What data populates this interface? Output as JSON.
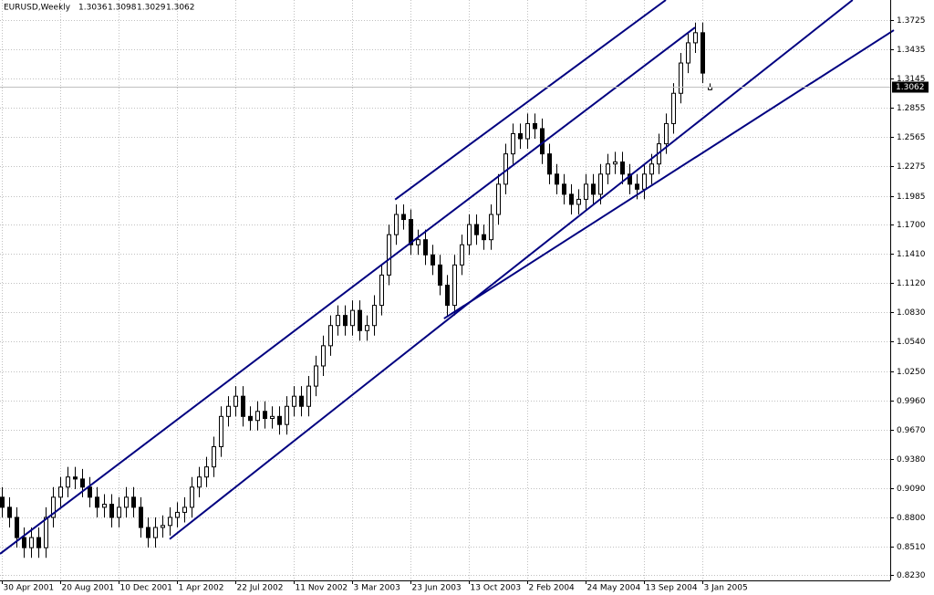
{
  "chart_data": {
    "type": "candlestick",
    "title": "EURUSD,Weekly",
    "categories": [
      "30 Apr 2001",
      null,
      null,
      null,
      null,
      null,
      null,
      null,
      "20 Aug 2001",
      null,
      null,
      null,
      null,
      null,
      null,
      null,
      "10 Dec 2001",
      null,
      null,
      null,
      null,
      null,
      null,
      null,
      "1 Apr 2002",
      null,
      null,
      null,
      null,
      null,
      null,
      null,
      "22 Jul 2002",
      null,
      null,
      null,
      null,
      null,
      null,
      null,
      "11 Nov 2002",
      null,
      null,
      null,
      null,
      null,
      null,
      null,
      "3 Mar 2003",
      null,
      null,
      null,
      null,
      null,
      null,
      null,
      "23 Jun 2003",
      null,
      null,
      null,
      null,
      null,
      null,
      null,
      "13 Oct 2003",
      null,
      null,
      null,
      null,
      null,
      null,
      null,
      "2 Feb 2004",
      null,
      null,
      null,
      null,
      null,
      null,
      null,
      "24 May 2004",
      null,
      null,
      null,
      null,
      null,
      null,
      null,
      "13 Sep 2004",
      null,
      null,
      null,
      null,
      null,
      null,
      null,
      "3 Jan 2005",
      null
    ],
    "open": [
      0.9,
      0.89,
      0.88,
      0.86,
      0.85,
      0.86,
      0.85,
      0.88,
      0.9,
      0.91,
      0.92,
      0.918,
      0.91,
      0.9,
      0.89,
      0.893,
      0.88,
      0.89,
      0.9,
      0.89,
      0.87,
      0.86,
      0.87,
      0.872,
      0.88,
      0.885,
      0.89,
      0.91,
      0.92,
      0.93,
      0.95,
      0.98,
      0.99,
      1.0,
      0.98,
      0.976,
      0.985,
      0.978,
      0.98,
      0.972,
      0.99,
      1.0,
      0.99,
      1.01,
      1.03,
      1.05,
      1.07,
      1.08,
      1.07,
      1.085,
      1.065,
      1.07,
      1.09,
      1.12,
      1.16,
      1.18,
      1.175,
      1.15,
      1.155,
      1.14,
      1.13,
      1.11,
      1.09,
      1.13,
      1.15,
      1.17,
      1.16,
      1.155,
      1.18,
      1.21,
      1.24,
      1.26,
      1.255,
      1.27,
      1.265,
      1.24,
      1.22,
      1.21,
      1.2,
      1.19,
      1.195,
      1.21,
      1.2,
      1.22,
      1.23,
      1.232,
      1.22,
      1.21,
      1.205,
      1.22,
      1.23,
      1.25,
      1.27,
      1.3,
      1.33,
      1.35,
      1.36,
      1.3036
    ],
    "high": [
      0.91,
      0.9,
      0.89,
      0.87,
      0.87,
      0.87,
      0.89,
      0.91,
      0.92,
      0.93,
      0.93,
      0.928,
      0.92,
      0.91,
      0.903,
      0.903,
      0.9,
      0.91,
      0.91,
      0.9,
      0.88,
      0.88,
      0.882,
      0.89,
      0.895,
      0.9,
      0.92,
      0.93,
      0.94,
      0.96,
      0.99,
      1.0,
      1.01,
      1.01,
      0.99,
      0.995,
      0.995,
      0.99,
      0.99,
      1.0,
      1.01,
      1.01,
      1.02,
      1.04,
      1.06,
      1.08,
      1.09,
      1.09,
      1.095,
      1.095,
      1.08,
      1.1,
      1.13,
      1.17,
      1.19,
      1.19,
      1.185,
      1.165,
      1.165,
      1.15,
      1.14,
      1.12,
      1.14,
      1.16,
      1.18,
      1.18,
      1.17,
      1.19,
      1.22,
      1.25,
      1.27,
      1.27,
      1.28,
      1.28,
      1.275,
      1.25,
      1.23,
      1.22,
      1.21,
      1.205,
      1.22,
      1.22,
      1.23,
      1.24,
      1.242,
      1.242,
      1.23,
      1.22,
      1.23,
      1.24,
      1.26,
      1.28,
      1.31,
      1.34,
      1.36,
      1.37,
      1.37,
      1.3098
    ],
    "low": [
      0.88,
      0.87,
      0.85,
      0.84,
      0.84,
      0.84,
      0.84,
      0.87,
      0.89,
      0.9,
      0.908,
      0.9,
      0.89,
      0.88,
      0.88,
      0.87,
      0.87,
      0.88,
      0.88,
      0.86,
      0.85,
      0.85,
      0.86,
      0.862,
      0.87,
      0.875,
      0.88,
      0.9,
      0.91,
      0.92,
      0.94,
      0.97,
      0.98,
      0.97,
      0.966,
      0.966,
      0.968,
      0.968,
      0.962,
      0.962,
      0.98,
      0.98,
      0.98,
      1.0,
      1.02,
      1.04,
      1.06,
      1.06,
      1.06,
      1.055,
      1.055,
      1.06,
      1.08,
      1.11,
      1.15,
      1.165,
      1.14,
      1.14,
      1.13,
      1.12,
      1.1,
      1.08,
      1.08,
      1.12,
      1.14,
      1.15,
      1.145,
      1.145,
      1.17,
      1.2,
      1.23,
      1.245,
      1.245,
      1.255,
      1.23,
      1.21,
      1.2,
      1.19,
      1.18,
      1.18,
      1.185,
      1.19,
      1.19,
      1.21,
      1.22,
      1.21,
      1.2,
      1.195,
      1.195,
      1.21,
      1.22,
      1.24,
      1.26,
      1.29,
      1.32,
      1.34,
      1.31,
      1.3029
    ],
    "close": [
      0.89,
      0.88,
      0.86,
      0.85,
      0.86,
      0.85,
      0.88,
      0.9,
      0.91,
      0.92,
      0.918,
      0.91,
      0.9,
      0.89,
      0.893,
      0.88,
      0.89,
      0.9,
      0.89,
      0.87,
      0.86,
      0.87,
      0.872,
      0.88,
      0.885,
      0.89,
      0.91,
      0.92,
      0.93,
      0.95,
      0.98,
      0.99,
      1.0,
      0.98,
      0.976,
      0.985,
      0.978,
      0.98,
      0.972,
      0.99,
      1.0,
      0.99,
      1.01,
      1.03,
      1.05,
      1.07,
      1.08,
      1.07,
      1.085,
      1.065,
      1.07,
      1.09,
      1.12,
      1.16,
      1.18,
      1.175,
      1.15,
      1.155,
      1.14,
      1.13,
      1.11,
      1.09,
      1.13,
      1.15,
      1.17,
      1.16,
      1.155,
      1.18,
      1.21,
      1.24,
      1.26,
      1.255,
      1.27,
      1.265,
      1.24,
      1.22,
      1.21,
      1.2,
      1.19,
      1.195,
      1.21,
      1.2,
      1.22,
      1.23,
      1.232,
      1.22,
      1.21,
      1.205,
      1.22,
      1.23,
      1.25,
      1.27,
      1.3,
      1.33,
      1.35,
      1.36,
      1.32,
      1.3062
    ],
    "bull_color": "#ffffff",
    "bear_color": "#000000",
    "wick_color": "#000000",
    "trendline_color": "#000080",
    "trendlines": [
      {
        "x": [
          53.9,
          91
        ],
        "y": [
          1.1948,
          1.3924
        ]
      },
      {
        "x": [
          -0.25,
          95
        ],
        "y": [
          0.8439,
          1.3652
        ]
      },
      {
        "x": [
          23,
          116.6
        ],
        "y": [
          0.8585,
          1.3924
        ]
      },
      {
        "x": [
          60.6,
          122.25
        ],
        "y": [
          1.0769,
          1.3625
        ]
      }
    ],
    "xlim": [
      -0.25,
      121.75
    ],
    "ylim": [
      0.8176,
      1.3924
    ],
    "yticks": [
      1.3725,
      1.3435,
      1.3145,
      1.2855,
      1.2565,
      1.2275,
      1.1985,
      {
        "value": 1.17,
        "label": "1.1700"
      },
      {
        "value": 1.141,
        "label": "1.1410"
      },
      {
        "value": 1.112,
        "label": "1.1120"
      },
      {
        "value": 1.083,
        "label": "1.0830"
      },
      {
        "value": 1.054,
        "label": "1.0540"
      },
      {
        "value": 1.025,
        "label": "1.0250"
      },
      {
        "value": 0.996,
        "label": "0.9960"
      },
      {
        "value": 0.967,
        "label": "0.9670"
      },
      {
        "value": 0.938,
        "label": "0.9380"
      },
      {
        "value": 0.909,
        "label": "0.9090"
      },
      {
        "value": 0.88,
        "label": "0.8800"
      },
      {
        "value": 0.851,
        "label": "0.8510"
      },
      {
        "value": 0.823,
        "label": "0.8230"
      }
    ],
    "grid": true
  }
}
